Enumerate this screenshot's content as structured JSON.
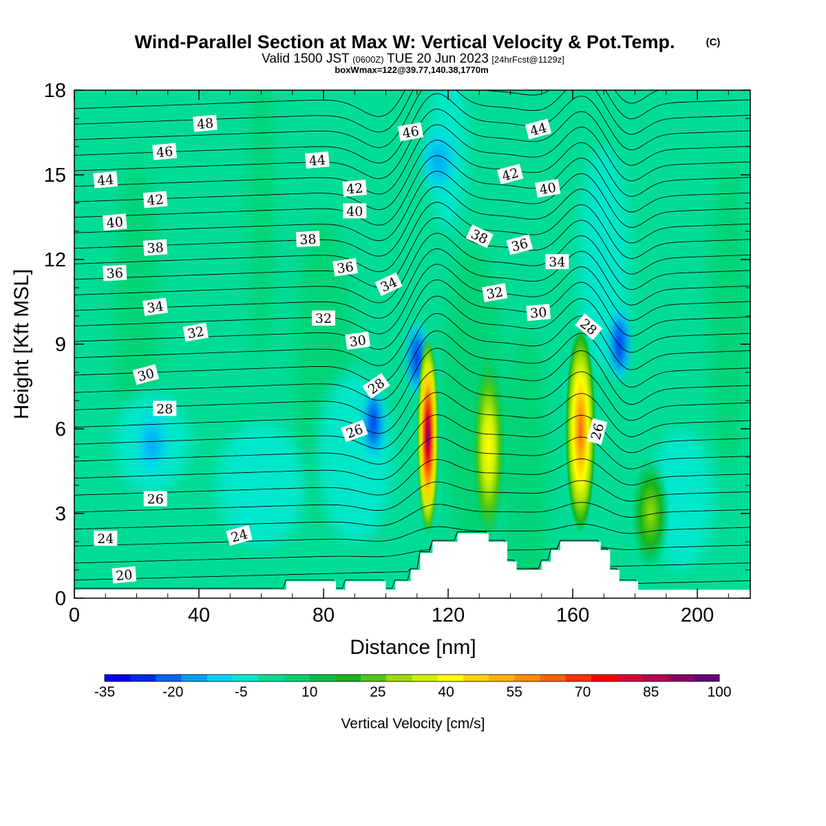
{
  "header": {
    "title": "Wind-Parallel Section at Max W: Vertical Velocity & Pot.Temp.",
    "title_mark": "(C)",
    "valid_prefix": "Valid 1500 JST",
    "valid_utc": "(0600Z)",
    "valid_date": "TUE 20 Jun 2023",
    "forecast": "[24hrFcst@1129z]",
    "box_info": "boxWmax=122@39.77,140.38,1770m"
  },
  "chart_data": {
    "type": "heatmap",
    "xlabel": "Distance [nm]",
    "ylabel": "Height [Kft MSL]",
    "xlim": [
      0,
      217
    ],
    "ylim": [
      0,
      18
    ],
    "xticks": [
      0,
      40,
      80,
      120,
      160,
      200
    ],
    "yticks": [
      0,
      3,
      6,
      9,
      12,
      15,
      18
    ],
    "colorbar": {
      "label": "Vertical Velocity [cm/s]",
      "tick_labels": [
        "-35",
        "-20",
        "-5",
        "10",
        "25",
        "40",
        "55",
        "70",
        "85",
        "100"
      ],
      "colors": [
        "#0000f0",
        "#0028f0",
        "#0064f0",
        "#00a0f0",
        "#00d2f0",
        "#00e8d0",
        "#00dc96",
        "#00d26e",
        "#00be46",
        "#14b41e",
        "#50c814",
        "#a0dc00",
        "#d2f000",
        "#ffff00",
        "#ffd200",
        "#ffb400",
        "#ff8c00",
        "#ff6400",
        "#ff3200",
        "#ff0000",
        "#dc0032",
        "#b40050",
        "#8c0064",
        "#640078"
      ]
    },
    "updraft_cores": [
      {
        "x": 113.5,
        "y_bottom": 2.2,
        "y_top": 9.3,
        "w_max": 95
      },
      {
        "x": 133,
        "y_bottom": 2.0,
        "y_top": 8.6,
        "w_max": 30
      },
      {
        "x": 162.5,
        "y_bottom": 2.3,
        "y_top": 9.6,
        "w_max": 65
      },
      {
        "x": 185,
        "y_bottom": 1.0,
        "y_top": 5.0,
        "w_max": 20
      }
    ],
    "downdraft_areas": [
      {
        "x": 110,
        "y": 8.5,
        "w_min": -30
      },
      {
        "x": 96,
        "y": 6.2,
        "w_min": -20
      },
      {
        "x": 117,
        "y": 15.5,
        "w_min": -5
      },
      {
        "x": 175,
        "y": 9.0,
        "w_min": -15
      },
      {
        "x": 25,
        "y": 5.5,
        "w_min": -5
      }
    ],
    "terrain": [
      [
        0,
        0.3
      ],
      [
        68,
        0.3
      ],
      [
        68,
        0.6
      ],
      [
        84,
        0.6
      ],
      [
        84,
        0.3
      ],
      [
        87,
        0.3
      ],
      [
        87,
        0.6
      ],
      [
        100,
        0.6
      ],
      [
        100,
        0.3
      ],
      [
        103,
        0.3
      ],
      [
        103,
        0.6
      ],
      [
        108,
        0.6
      ],
      [
        108,
        1.0
      ],
      [
        111,
        1.0
      ],
      [
        111,
        1.6
      ],
      [
        115,
        1.6
      ],
      [
        115,
        2.0
      ],
      [
        123,
        2.0
      ],
      [
        123,
        2.3
      ],
      [
        133,
        2.3
      ],
      [
        133,
        2.0
      ],
      [
        139,
        2.0
      ],
      [
        139,
        1.3
      ],
      [
        142,
        1.3
      ],
      [
        142,
        1.0
      ],
      [
        150,
        1.0
      ],
      [
        150,
        1.3
      ],
      [
        153,
        1.3
      ],
      [
        153,
        1.7
      ],
      [
        156,
        1.7
      ],
      [
        156,
        2.0
      ],
      [
        169,
        2.0
      ],
      [
        169,
        1.7
      ],
      [
        172,
        1.7
      ],
      [
        172,
        1.0
      ],
      [
        175,
        1.0
      ],
      [
        175,
        0.6
      ],
      [
        181,
        0.6
      ],
      [
        181,
        0.3
      ],
      [
        217,
        0.3
      ]
    ],
    "theta_contour_labels": [
      {
        "x": 42,
        "y": 16.8,
        "text": "48",
        "angle": -5
      },
      {
        "x": 29,
        "y": 15.8,
        "text": "46",
        "angle": -5
      },
      {
        "x": 10,
        "y": 14.8,
        "text": "44",
        "angle": -5
      },
      {
        "x": 26,
        "y": 14.1,
        "text": "42",
        "angle": -5
      },
      {
        "x": 13,
        "y": 13.3,
        "text": "40",
        "angle": -5
      },
      {
        "x": 26,
        "y": 12.4,
        "text": "38",
        "angle": -4
      },
      {
        "x": 13,
        "y": 11.5,
        "text": "36",
        "angle": -3
      },
      {
        "x": 26,
        "y": 10.3,
        "text": "34",
        "angle": -8
      },
      {
        "x": 39,
        "y": 9.4,
        "text": "32",
        "angle": -10
      },
      {
        "x": 23,
        "y": 7.9,
        "text": "30",
        "angle": -15
      },
      {
        "x": 29,
        "y": 6.7,
        "text": "28",
        "angle": 0
      },
      {
        "x": 26,
        "y": 3.5,
        "text": "26",
        "angle": 0
      },
      {
        "x": 10,
        "y": 2.1,
        "text": "24",
        "angle": 0
      },
      {
        "x": 16,
        "y": 0.8,
        "text": "20",
        "angle": -5
      },
      {
        "x": 78,
        "y": 15.5,
        "text": "44",
        "angle": -5
      },
      {
        "x": 75,
        "y": 12.7,
        "text": "38",
        "angle": -3
      },
      {
        "x": 80,
        "y": 9.9,
        "text": "32",
        "angle": 0
      },
      {
        "x": 53,
        "y": 2.2,
        "text": "24",
        "angle": -15
      },
      {
        "x": 108,
        "y": 16.5,
        "text": "46",
        "angle": -10
      },
      {
        "x": 90,
        "y": 14.5,
        "text": "42",
        "angle": -5
      },
      {
        "x": 90,
        "y": 13.7,
        "text": "40",
        "angle": 0
      },
      {
        "x": 87,
        "y": 11.7,
        "text": "36",
        "angle": -8
      },
      {
        "x": 101,
        "y": 11.1,
        "text": "34",
        "angle": -25
      },
      {
        "x": 91,
        "y": 9.1,
        "text": "30",
        "angle": -8
      },
      {
        "x": 97,
        "y": 7.5,
        "text": "28",
        "angle": -35
      },
      {
        "x": 90,
        "y": 5.9,
        "text": "26",
        "angle": -20
      },
      {
        "x": 149,
        "y": 16.6,
        "text": "44",
        "angle": -15
      },
      {
        "x": 140,
        "y": 15.0,
        "text": "42",
        "angle": -15
      },
      {
        "x": 152,
        "y": 14.5,
        "text": "40",
        "angle": -10
      },
      {
        "x": 130,
        "y": 12.8,
        "text": "38",
        "angle": 25
      },
      {
        "x": 143,
        "y": 12.5,
        "text": "36",
        "angle": -15
      },
      {
        "x": 135,
        "y": 10.8,
        "text": "32",
        "angle": -10
      },
      {
        "x": 155,
        "y": 11.9,
        "text": "34",
        "angle": 0
      },
      {
        "x": 149,
        "y": 10.1,
        "text": "30",
        "angle": -5
      },
      {
        "x": 165,
        "y": 9.6,
        "text": "28",
        "angle": 40
      },
      {
        "x": 168,
        "y": 5.9,
        "text": "26",
        "angle": -75
      }
    ]
  }
}
